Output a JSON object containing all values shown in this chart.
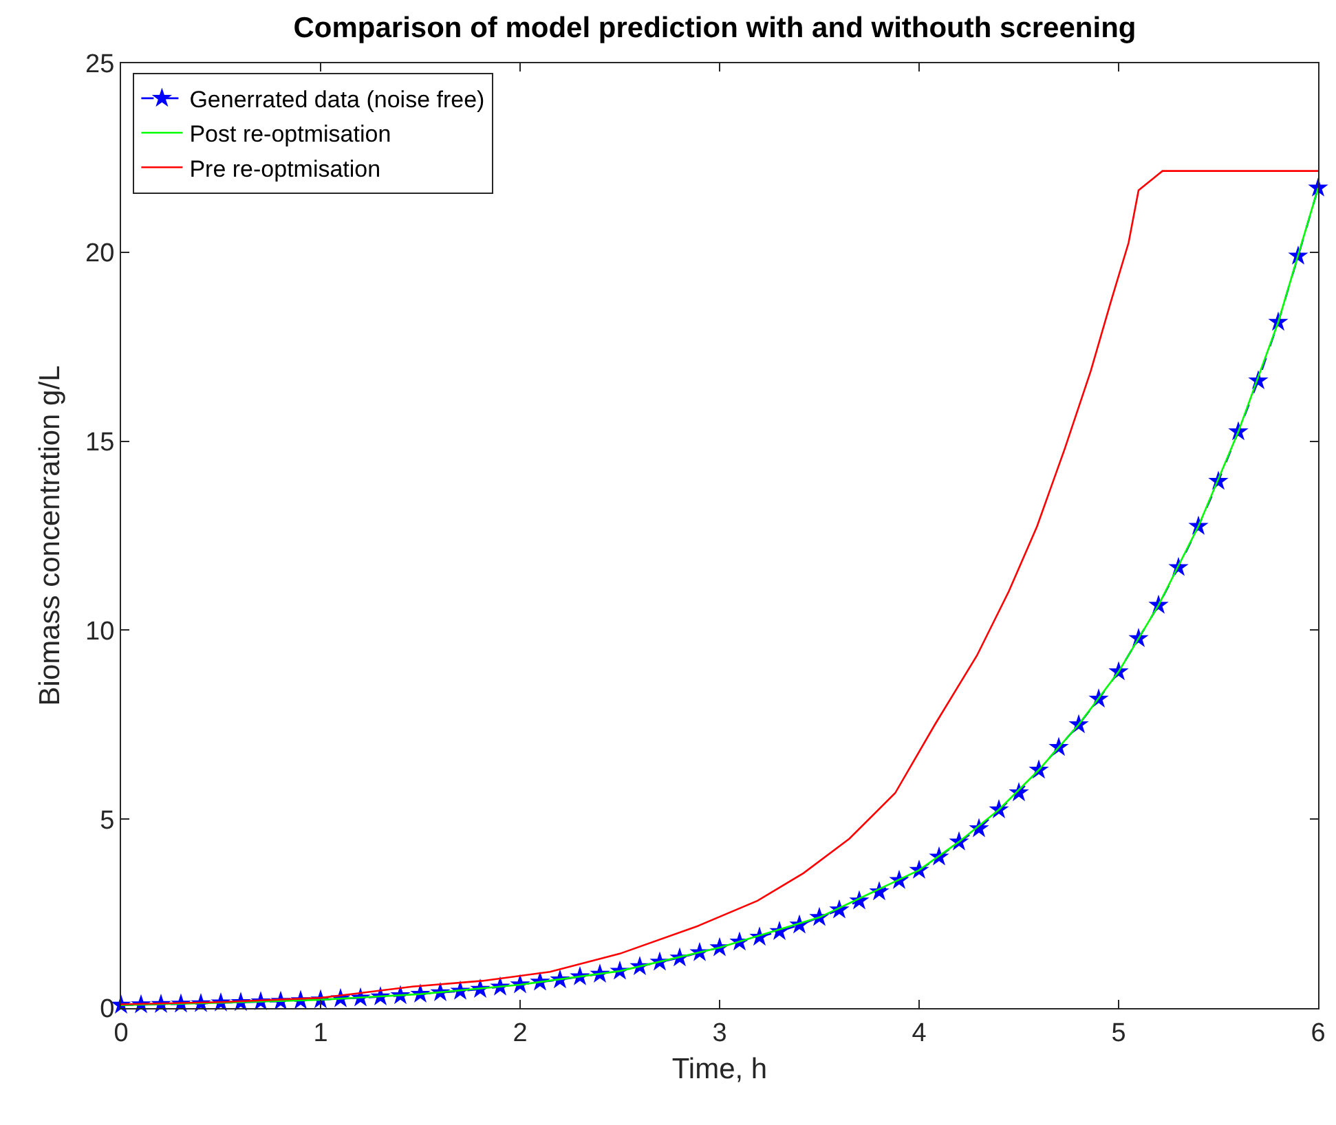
{
  "chart_data": {
    "type": "line",
    "title": "Comparison of model prediction with and withouth screening",
    "xlabel": "Time, h",
    "ylabel": "Biomass concentration g/L",
    "xlim": [
      0,
      6
    ],
    "ylim": [
      0,
      25
    ],
    "xticks": [
      0,
      1,
      2,
      3,
      4,
      5,
      6
    ],
    "yticks": [
      0,
      5,
      10,
      15,
      20,
      25
    ],
    "grid": false,
    "legend": "top left",
    "series": [
      {
        "name": "Generrated data (noise free)",
        "color": "#0000ff",
        "marker": "star",
        "line_style": "dashed",
        "x": [
          0,
          0.1,
          0.2,
          0.3,
          0.4,
          0.5,
          0.6,
          0.7,
          0.8,
          0.9,
          1,
          1.1,
          1.2,
          1.3,
          1.4,
          1.5,
          1.6,
          1.7,
          1.8,
          1.9,
          2,
          2.1,
          2.2,
          2.3,
          2.4,
          2.5,
          2.6,
          2.7,
          2.8,
          2.9,
          3,
          3.1,
          3.2,
          3.3,
          3.4,
          3.5,
          3.6,
          3.7,
          3.8,
          3.9,
          4,
          4.1,
          4.2,
          4.3,
          4.4,
          4.5,
          4.6,
          4.7,
          4.8,
          4.9,
          5,
          5.1,
          5.2,
          5.3,
          5.4,
          5.5,
          5.6,
          5.7,
          5.8,
          5.9,
          6
        ],
        "values": [
          0.08,
          0.09,
          0.1,
          0.11,
          0.12,
          0.14,
          0.15,
          0.17,
          0.18,
          0.2,
          0.22,
          0.25,
          0.27,
          0.3,
          0.33,
          0.37,
          0.41,
          0.45,
          0.5,
          0.56,
          0.62,
          0.69,
          0.75,
          0.83,
          0.9,
          0.98,
          1.1,
          1.22,
          1.33,
          1.47,
          1.6,
          1.75,
          1.88,
          2.03,
          2.2,
          2.4,
          2.6,
          2.84,
          3.08,
          3.38,
          3.65,
          4.0,
          4.4,
          4.75,
          5.25,
          5.7,
          6.3,
          6.9,
          7.5,
          8.18,
          8.9,
          9.78,
          10.66,
          11.66,
          12.75,
          13.94,
          15.25,
          16.6,
          18.15,
          19.9,
          21.7
        ]
      },
      {
        "name": "Post re-optmisation",
        "color": "#00ff00",
        "marker": "none",
        "line_style": "solid",
        "x": [
          0,
          0.5,
          1,
          1.5,
          2,
          2.5,
          3,
          3.5,
          4,
          4.2,
          4.4,
          4.6,
          4.8,
          5,
          5.2,
          5.4,
          5.6,
          5.8,
          6
        ],
        "values": [
          0.08,
          0.14,
          0.22,
          0.37,
          0.62,
          0.98,
          1.6,
          2.4,
          3.65,
          4.4,
          5.25,
          6.3,
          7.5,
          8.9,
          10.66,
          12.75,
          15.25,
          18.15,
          21.7
        ]
      },
      {
        "name": "Pre re-optmisation",
        "color": "#ff0000",
        "marker": "none",
        "line_style": "solid",
        "x": [
          0,
          0.5,
          1,
          1.46,
          1.81,
          2.15,
          2.5,
          2.89,
          3.19,
          3.42,
          3.65,
          3.88,
          4.08,
          4.29,
          4.45,
          4.59,
          4.73,
          4.86,
          4.96,
          5.05,
          5.1,
          5.22,
          6
        ],
        "values": [
          0.1,
          0.16,
          0.27,
          0.57,
          0.72,
          0.96,
          1.44,
          2.17,
          2.84,
          3.57,
          4.48,
          5.69,
          7.51,
          9.33,
          11.03,
          12.73,
          14.8,
          16.85,
          18.67,
          20.25,
          21.64,
          22.15,
          22.15
        ]
      }
    ]
  }
}
